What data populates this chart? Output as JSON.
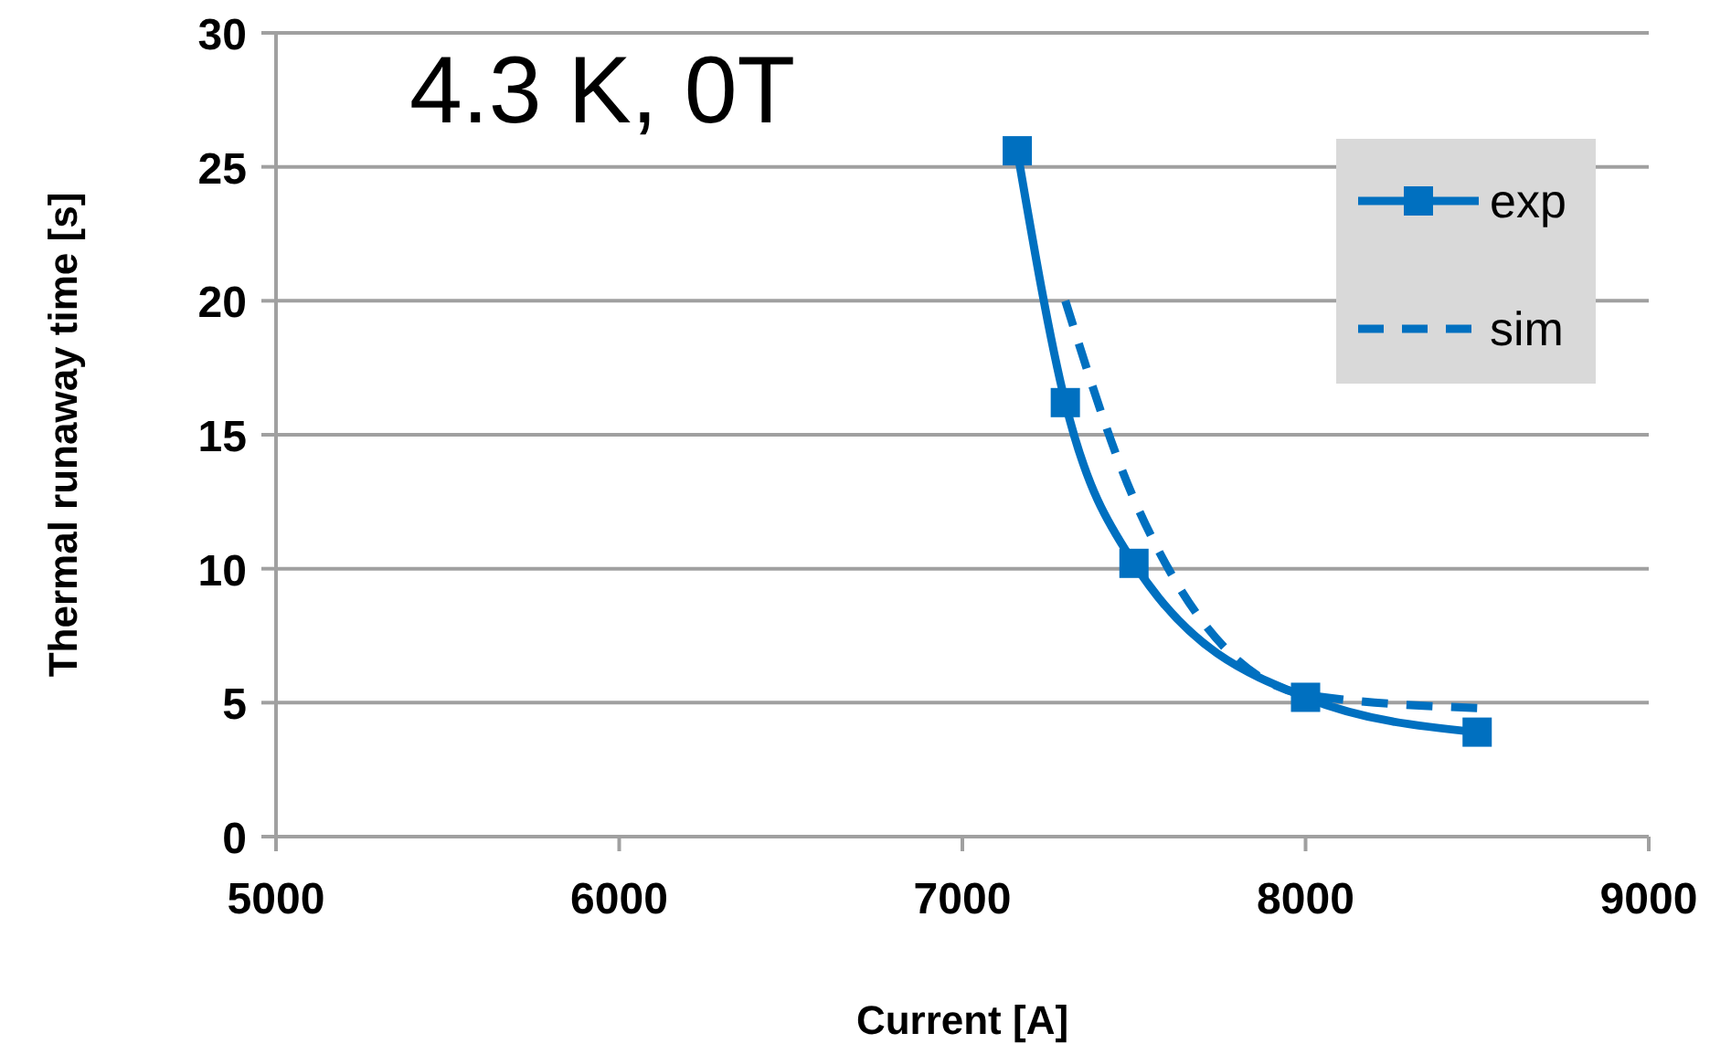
{
  "chart_data": {
    "type": "line",
    "title": "4.3 K, 0T",
    "xlabel": "Current [A]",
    "ylabel": "Thermal runaway time [s]",
    "xlim": [
      5000,
      9000
    ],
    "xticks": [
      5000,
      6000,
      7000,
      8000,
      9000
    ],
    "ylim": [
      0,
      30
    ],
    "yticks": [
      0,
      5,
      10,
      15,
      20,
      25,
      30
    ],
    "grid": "y",
    "legend": "top right",
    "series": [
      {
        "name": "exp",
        "color": "#0070c0",
        "x": [
          7160,
          7300,
          7500,
          8000,
          8500
        ],
        "values": [
          25.6,
          16.2,
          10.2,
          5.2,
          3.9
        ],
        "marker": "square",
        "line_style": "solid"
      },
      {
        "name": "sim",
        "color": "#0070c0",
        "x": [
          7300,
          7500,
          8000,
          8500
        ],
        "values": [
          20,
          12.6,
          5.3,
          4.8
        ],
        "marker": "none",
        "line_style": "dashed"
      }
    ]
  }
}
